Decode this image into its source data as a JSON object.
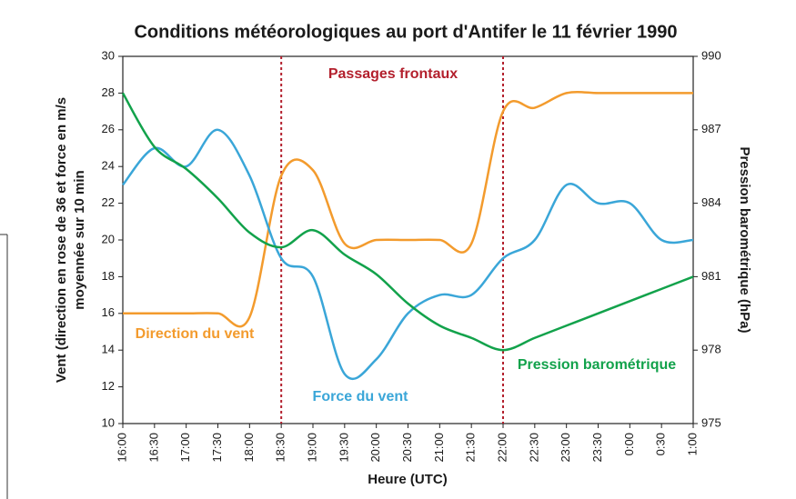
{
  "chart_data": {
    "type": "line",
    "title": "Conditions météorologiques au port d'Antifer le 11 février 1990",
    "annotation": "Passages frontaux",
    "frontal_passages": [
      "18:30",
      "22:00"
    ],
    "x_label": "Heure (UTC)",
    "y_label": [
      "Vent (direction en rose de 36 et force en m/s",
      "moyennée sur 10 min"
    ],
    "y2_label": "Pression barométrique (hPa)",
    "categories": [
      "16:00",
      "16:30",
      "17:00",
      "17:30",
      "18:00",
      "18:30",
      "19:00",
      "19:30",
      "20:00",
      "20:30",
      "21:00",
      "21:30",
      "22:00",
      "22:30",
      "23:00",
      "23:30",
      "0:00",
      "0:30",
      "1:00"
    ],
    "ylim": [
      10,
      30
    ],
    "yticks": [
      10,
      12,
      14,
      16,
      18,
      20,
      22,
      24,
      26,
      28,
      30
    ],
    "y2lim": [
      975,
      990
    ],
    "y2ticks": [
      975,
      978,
      981,
      984,
      987,
      990
    ],
    "series": [
      {
        "name": "Direction du vent",
        "color": "#f39b2d",
        "axis": "y",
        "values": [
          16,
          16,
          16,
          16,
          15.8,
          23.5,
          23.8,
          19.8,
          20,
          20,
          20,
          19.8,
          27,
          27.2,
          28,
          28,
          28,
          28,
          28
        ]
      },
      {
        "name": "Force du vent",
        "color": "#3aa6d8",
        "axis": "y",
        "values": [
          23,
          25,
          24,
          26,
          23.5,
          19,
          18,
          12.7,
          13.5,
          16,
          17,
          17,
          19,
          20,
          23,
          22,
          22,
          20,
          20
        ]
      },
      {
        "name": "Pression barométrique",
        "color": "#12a24b",
        "axis": "y2",
        "values": [
          988.5,
          986.3,
          985.4,
          984.2,
          982.8,
          982.2,
          982.9,
          981.9,
          981.1,
          979.9,
          979,
          978.5,
          978,
          978.5,
          979,
          979.5,
          980,
          980.5,
          981
        ]
      }
    ]
  }
}
